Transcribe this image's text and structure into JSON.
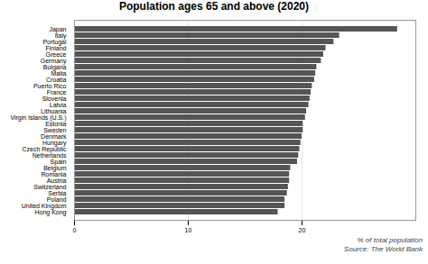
{
  "chart_data": {
    "type": "bar",
    "orientation": "horizontal",
    "title": "Population ages 65 and above (2020)",
    "xlabel": "% of total population",
    "annotations": [
      "Source: The World Bank"
    ],
    "categories": [
      "Japan",
      "Italy",
      "Portugal",
      "Finland",
      "Greece",
      "Germany",
      "Bulgaria",
      "Malta",
      "Croatia",
      "Puerto Rico",
      "France",
      "Slovenia",
      "Latvia",
      "Lithuania",
      "Virgin Islands (U.S.)",
      "Estonia",
      "Sweden",
      "Denmark",
      "Hungary",
      "Czech Republic",
      "Netherlands",
      "Spain",
      "Belgium",
      "Romania",
      "Austria",
      "Switzerland",
      "Serbia",
      "Poland",
      "United Kingdom",
      "Hong Kong"
    ],
    "values": [
      28.4,
      23.3,
      22.8,
      22.1,
      21.9,
      21.7,
      21.3,
      21.2,
      21.1,
      20.9,
      20.8,
      20.7,
      20.6,
      20.4,
      20.3,
      20.1,
      20.1,
      20.0,
      19.9,
      19.8,
      19.7,
      19.6,
      19.0,
      18.9,
      18.9,
      18.8,
      18.7,
      18.5,
      18.5,
      17.9
    ],
    "color": "#555555",
    "xlim": [
      0,
      30
    ],
    "xticks": [
      0,
      10,
      20
    ],
    "grid": true
  }
}
